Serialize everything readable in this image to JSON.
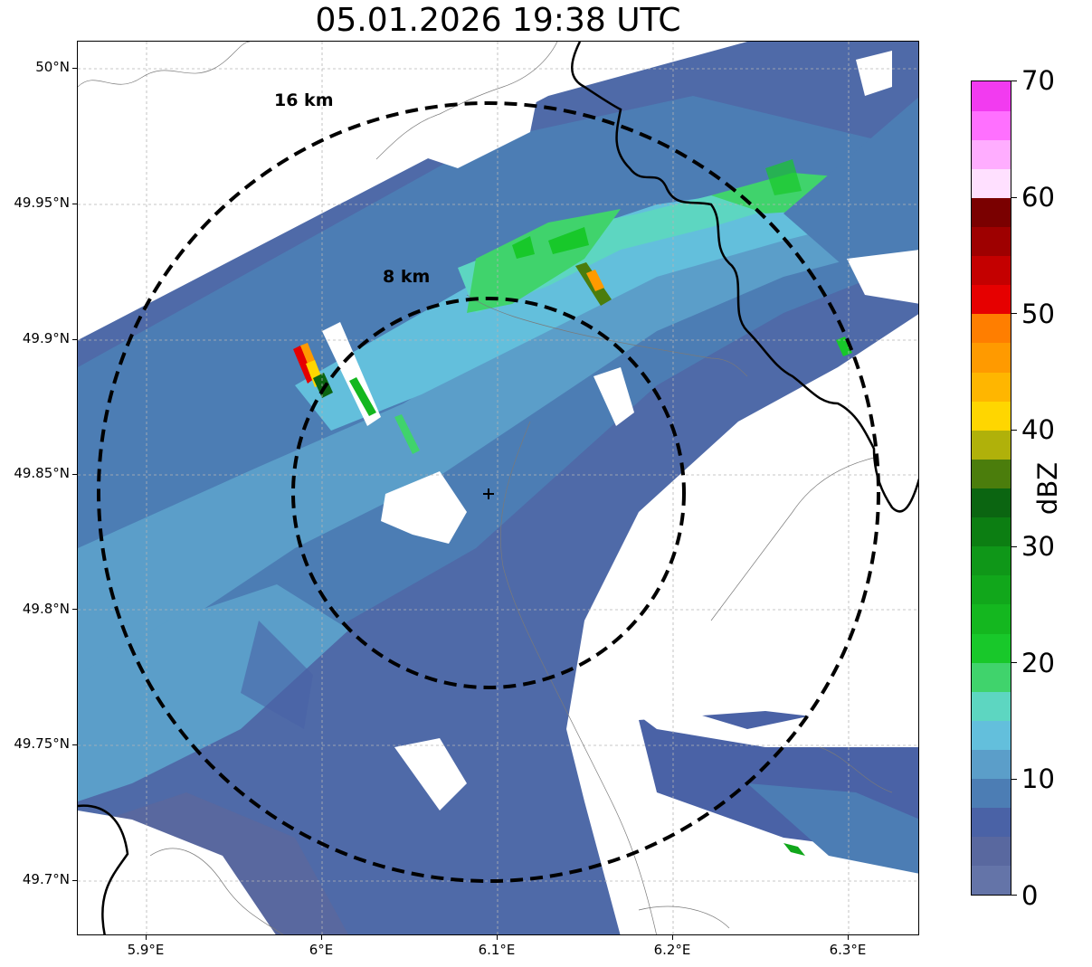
{
  "title": "05.01.2026 19:38 UTC",
  "map": {
    "lat_ticks": [
      "50°N",
      "49.95°N",
      "49.9°N",
      "49.85°N",
      "49.8°N",
      "49.75°N",
      "49.7°N"
    ],
    "lon_ticks": [
      "5.9°E",
      "6°E",
      "6.1°E",
      "6.2°E",
      "6.3°E"
    ],
    "rings": [
      {
        "label": "16 km",
        "radius_km": 16
      },
      {
        "label": "8 km",
        "radius_km": 8
      }
    ],
    "radar_site": {
      "lon": 6.095,
      "lat": 49.843
    }
  },
  "colorbar": {
    "label": "dBZ",
    "ticks": [
      "0",
      "10",
      "20",
      "30",
      "40",
      "50",
      "60",
      "70"
    ],
    "min": 0,
    "max": 70,
    "step": 2.5,
    "colors": [
      "#6474a8",
      "#59689f",
      "#4a62a6",
      "#4c7db4",
      "#5b9ec9",
      "#63bfdc",
      "#5dd6c1",
      "#40d36c",
      "#18c82a",
      "#14b71f",
      "#11a71b",
      "#0f9718",
      "#0c7e12",
      "#0b6511",
      "#4b7d0c",
      "#b0b10a",
      "#ffd600",
      "#ffb600",
      "#ff9a00",
      "#ff7e00",
      "#e60000",
      "#c40000",
      "#9e0000",
      "#7a0000",
      "#ffe0ff",
      "#ffadff",
      "#ff70ff",
      "#f23bf0"
    ]
  }
}
